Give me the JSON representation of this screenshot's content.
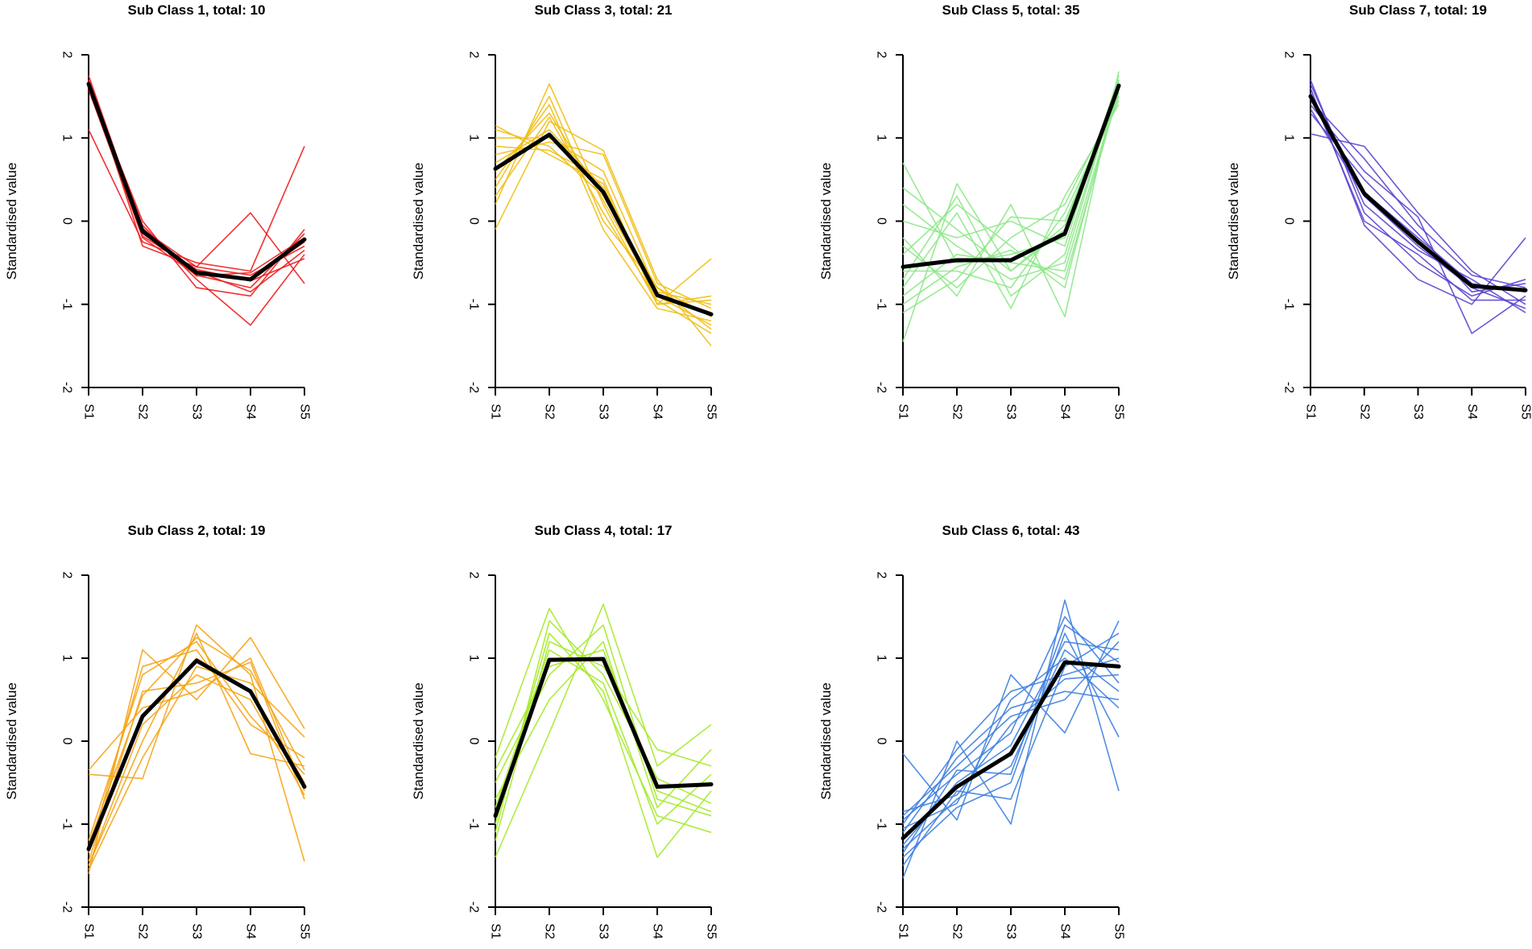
{
  "chart_data": [
    {
      "type": "line",
      "title": "Sub Class 1, total: 10",
      "ylabel": "Standardised value",
      "xlabel": "",
      "categories": [
        "S1",
        "S2",
        "S3",
        "S4",
        "S5"
      ],
      "ylim": [
        -2,
        2
      ],
      "yticks": [
        -2,
        -1,
        0,
        1,
        2
      ],
      "color": "#ee1c1c",
      "centroid": [
        1.65,
        -0.12,
        -0.62,
        -0.7,
        -0.22
      ],
      "series": [
        {
          "values": [
            1.7,
            -0.15,
            -0.6,
            -0.7,
            -0.25
          ]
        },
        {
          "values": [
            1.75,
            -0.1,
            -0.55,
            -0.65,
            -0.3
          ]
        },
        {
          "values": [
            1.6,
            -0.2,
            -0.65,
            -0.8,
            -0.15
          ]
        },
        {
          "values": [
            1.1,
            -0.25,
            -0.5,
            -0.6,
            0.9
          ]
        },
        {
          "values": [
            1.65,
            -0.05,
            -0.7,
            -1.25,
            -0.4
          ]
        },
        {
          "values": [
            1.68,
            -0.3,
            -0.55,
            0.1,
            -0.75
          ]
        },
        {
          "values": [
            1.62,
            0.0,
            -0.8,
            -0.9,
            -0.1
          ]
        },
        {
          "values": [
            1.7,
            -0.12,
            -0.6,
            -0.85,
            -0.35
          ]
        },
        {
          "values": [
            1.58,
            -0.18,
            -0.58,
            -0.72,
            -0.45
          ]
        },
        {
          "values": [
            1.66,
            -0.08,
            -0.66,
            -0.62,
            -0.2
          ]
        }
      ]
    },
    {
      "type": "line",
      "title": "Sub Class 3, total: 21",
      "ylabel": "Standardised value",
      "xlabel": "",
      "categories": [
        "S1",
        "S2",
        "S3",
        "S4",
        "S5"
      ],
      "ylim": [
        -2,
        2
      ],
      "yticks": [
        -2,
        -1,
        0,
        1,
        2
      ],
      "color": "#efbf17",
      "centroid": [
        0.63,
        1.04,
        0.35,
        -0.89,
        -1.12
      ],
      "series": [
        {
          "values": [
            0.7,
            1.1,
            0.4,
            -0.9,
            -1.1
          ]
        },
        {
          "values": [
            1.1,
            0.9,
            0.3,
            -0.8,
            -1.3
          ]
        },
        {
          "values": [
            0.2,
            1.65,
            0.2,
            -1.0,
            -0.9
          ]
        },
        {
          "values": [
            -0.1,
            1.2,
            0.85,
            -0.7,
            -1.5
          ]
        },
        {
          "values": [
            0.9,
            0.85,
            0.5,
            -1.0,
            -0.45
          ]
        },
        {
          "values": [
            0.5,
            1.4,
            -0.1,
            -1.05,
            -1.2
          ]
        },
        {
          "values": [
            1.0,
            1.0,
            0.6,
            -0.85,
            -1.0
          ]
        },
        {
          "values": [
            0.3,
            1.25,
            0.1,
            -0.95,
            -1.35
          ]
        },
        {
          "values": [
            0.8,
            0.95,
            0.8,
            -0.75,
            -1.05
          ]
        },
        {
          "values": [
            0.6,
            1.3,
            0.25,
            -0.9,
            -1.25
          ]
        },
        {
          "values": [
            1.15,
            0.8,
            0.45,
            -1.0,
            -0.95
          ]
        },
        {
          "values": [
            0.4,
            1.5,
            0.0,
            -0.8,
            -1.15
          ]
        }
      ]
    },
    {
      "type": "line",
      "title": "Sub Class 5, total: 35",
      "ylabel": "Standardised value",
      "xlabel": "",
      "categories": [
        "S1",
        "S2",
        "S3",
        "S4",
        "S5"
      ],
      "ylim": [
        -2,
        2
      ],
      "yticks": [
        -2,
        -1,
        0,
        1,
        2
      ],
      "color": "#8ee88a",
      "centroid": [
        -0.55,
        -0.47,
        -0.47,
        -0.15,
        1.63
      ],
      "series": [
        {
          "values": [
            0.7,
            -0.5,
            -0.4,
            -0.2,
            1.6
          ]
        },
        {
          "values": [
            -1.45,
            0.45,
            -0.6,
            -0.1,
            1.5
          ]
        },
        {
          "values": [
            -0.2,
            -0.9,
            0.2,
            -1.15,
            1.8
          ]
        },
        {
          "values": [
            -0.8,
            0.1,
            -1.05,
            0.3,
            1.4
          ]
        },
        {
          "values": [
            0.2,
            -0.3,
            -0.7,
            -0.5,
            1.7
          ]
        },
        {
          "values": [
            -1.1,
            -0.7,
            0.05,
            0.0,
            1.55
          ]
        },
        {
          "values": [
            -0.4,
            0.2,
            -0.3,
            -0.8,
            1.65
          ]
        },
        {
          "values": [
            -0.6,
            -0.6,
            -0.8,
            0.1,
            1.45
          ]
        },
        {
          "values": [
            0.0,
            -0.2,
            0.0,
            -0.3,
            1.75
          ]
        },
        {
          "values": [
            -0.9,
            -0.4,
            -0.5,
            -0.6,
            1.6
          ]
        },
        {
          "values": [
            -0.3,
            -0.8,
            -0.2,
            0.2,
            1.5
          ]
        },
        {
          "values": [
            -0.7,
            0.3,
            -0.9,
            -0.4,
            1.7
          ]
        },
        {
          "values": [
            0.4,
            -0.1,
            -0.6,
            -0.05,
            1.6
          ]
        },
        {
          "values": [
            -1.0,
            -0.55,
            -0.35,
            -0.7,
            1.55
          ]
        }
      ]
    },
    {
      "type": "line",
      "title": "Sub Class 7, total: 19",
      "ylabel": "Standardised value",
      "xlabel": "",
      "categories": [
        "S1",
        "S2",
        "S3",
        "S4",
        "S5"
      ],
      "ylim": [
        -2,
        2
      ],
      "yticks": [
        -2,
        -1,
        0,
        1,
        2
      ],
      "color": "#5a44d0",
      "centroid": [
        1.5,
        0.33,
        -0.25,
        -0.78,
        -0.83
      ],
      "series": [
        {
          "values": [
            1.5,
            0.35,
            -0.2,
            -0.75,
            -0.85
          ]
        },
        {
          "values": [
            1.7,
            0.1,
            -0.5,
            -0.9,
            -0.7
          ]
        },
        {
          "values": [
            1.05,
            0.9,
            0.1,
            -0.6,
            -1.0
          ]
        },
        {
          "values": [
            1.6,
            -0.05,
            -0.7,
            -1.0,
            -0.2
          ]
        },
        {
          "values": [
            1.4,
            0.6,
            0.05,
            -1.35,
            -0.9
          ]
        },
        {
          "values": [
            1.65,
            0.2,
            -0.35,
            -0.7,
            -1.1
          ]
        },
        {
          "values": [
            1.3,
            0.5,
            -0.15,
            -0.85,
            -0.75
          ]
        },
        {
          "values": [
            1.55,
            0.0,
            -0.4,
            -0.95,
            -0.95
          ]
        },
        {
          "values": [
            1.45,
            0.75,
            -0.05,
            -0.65,
            -0.8
          ]
        },
        {
          "values": [
            1.35,
            0.3,
            -0.3,
            -0.8,
            -1.05
          ]
        }
      ]
    },
    {
      "type": "line",
      "title": "Sub Class 2, total: 19",
      "ylabel": "Standardised value",
      "xlabel": "",
      "categories": [
        "S1",
        "S2",
        "S3",
        "S4",
        "S5"
      ],
      "ylim": [
        -2,
        2
      ],
      "yticks": [
        -2,
        -1,
        0,
        1,
        2
      ],
      "color": "#f5a415",
      "centroid": [
        -1.3,
        0.3,
        0.97,
        0.6,
        -0.55
      ],
      "series": [
        {
          "values": [
            -1.3,
            0.3,
            1.0,
            0.6,
            -0.5
          ]
        },
        {
          "values": [
            -0.4,
            -0.45,
            1.4,
            0.8,
            -1.45
          ]
        },
        {
          "values": [
            -1.6,
            1.1,
            0.5,
            1.25,
            0.15
          ]
        },
        {
          "values": [
            -1.5,
            0.0,
            1.3,
            -0.15,
            -0.3
          ]
        },
        {
          "values": [
            -1.45,
            0.6,
            0.7,
            0.95,
            -0.7
          ]
        },
        {
          "values": [
            -1.2,
            0.8,
            1.2,
            0.3,
            -0.4
          ]
        },
        {
          "values": [
            -1.55,
            -0.2,
            0.9,
            0.7,
            0.05
          ]
        },
        {
          "values": [
            -0.35,
            0.4,
            0.6,
            1.0,
            -0.6
          ]
        },
        {
          "values": [
            -1.35,
            0.9,
            1.1,
            0.2,
            -0.2
          ]
        },
        {
          "values": [
            -1.5,
            0.2,
            0.8,
            0.5,
            -0.65
          ]
        },
        {
          "values": [
            -1.25,
            0.55,
            1.25,
            0.85,
            -0.35
          ]
        }
      ]
    },
    {
      "type": "line",
      "title": "Sub Class 4, total: 17",
      "ylabel": "Standardised value",
      "xlabel": "",
      "categories": [
        "S1",
        "S2",
        "S3",
        "S4",
        "S5"
      ],
      "ylim": [
        -2,
        2
      ],
      "yticks": [
        -2,
        -1,
        0,
        1,
        2
      ],
      "color": "#a4ea2a",
      "centroid": [
        -0.9,
        0.98,
        0.99,
        -0.55,
        -0.52
      ],
      "series": [
        {
          "values": [
            -0.9,
            1.0,
            1.0,
            -0.55,
            -0.5
          ]
        },
        {
          "values": [
            -0.2,
            1.6,
            0.5,
            -0.9,
            -1.1
          ]
        },
        {
          "values": [
            -1.4,
            0.1,
            1.65,
            -0.3,
            0.2
          ]
        },
        {
          "values": [
            -1.0,
            1.3,
            0.6,
            -1.4,
            -0.6
          ]
        },
        {
          "values": [
            -0.5,
            0.8,
            1.4,
            -0.7,
            -0.9
          ]
        },
        {
          "values": [
            -1.2,
            1.2,
            0.9,
            -0.1,
            -0.3
          ]
        },
        {
          "values": [
            -0.7,
            0.5,
            1.2,
            -0.8,
            -0.1
          ]
        },
        {
          "values": [
            -1.1,
            1.45,
            0.8,
            -0.45,
            -0.75
          ]
        },
        {
          "values": [
            -0.35,
            0.9,
            1.1,
            -0.6,
            -0.85
          ]
        },
        {
          "values": [
            -0.8,
            1.1,
            0.7,
            -1.0,
            -0.4
          ]
        }
      ]
    },
    {
      "type": "line",
      "title": "Sub Class 6, total: 43",
      "ylabel": "Standardised value",
      "xlabel": "",
      "categories": [
        "S1",
        "S2",
        "S3",
        "S4",
        "S5"
      ],
      "ylim": [
        -2,
        2
      ],
      "yticks": [
        -2,
        -1,
        0,
        1,
        2
      ],
      "color": "#3f7fe0",
      "centroid": [
        -1.17,
        -0.55,
        -0.15,
        0.95,
        0.9
      ],
      "series": [
        {
          "values": [
            -1.15,
            -0.55,
            -0.15,
            0.95,
            0.9
          ]
        },
        {
          "values": [
            -0.15,
            -0.95,
            0.8,
            0.1,
            1.45
          ]
        },
        {
          "values": [
            -1.65,
            0.0,
            -1.0,
            1.7,
            -0.6
          ]
        },
        {
          "values": [
            -0.9,
            -0.3,
            0.3,
            0.5,
            1.2
          ]
        },
        {
          "values": [
            -1.4,
            -0.8,
            -0.5,
            1.3,
            0.05
          ]
        },
        {
          "values": [
            -1.0,
            -0.1,
            0.6,
            0.8,
            1.0
          ]
        },
        {
          "values": [
            -1.3,
            -0.7,
            -0.3,
            1.1,
            0.6
          ]
        },
        {
          "values": [
            -0.95,
            -0.4,
            0.1,
            1.5,
            0.7
          ]
        },
        {
          "values": [
            -1.5,
            -0.6,
            -0.7,
            0.9,
            1.3
          ]
        },
        {
          "values": [
            -1.1,
            -0.2,
            0.4,
            0.6,
            0.5
          ]
        },
        {
          "values": [
            -1.25,
            -0.5,
            -0.05,
            1.2,
            1.1
          ]
        },
        {
          "values": [
            -0.85,
            -0.65,
            0.2,
            0.75,
            0.8
          ]
        },
        {
          "values": [
            -1.35,
            -0.35,
            -0.4,
            1.4,
            0.95
          ]
        },
        {
          "values": [
            -1.05,
            -0.75,
            0.5,
            1.0,
            0.4
          ]
        }
      ]
    }
  ]
}
